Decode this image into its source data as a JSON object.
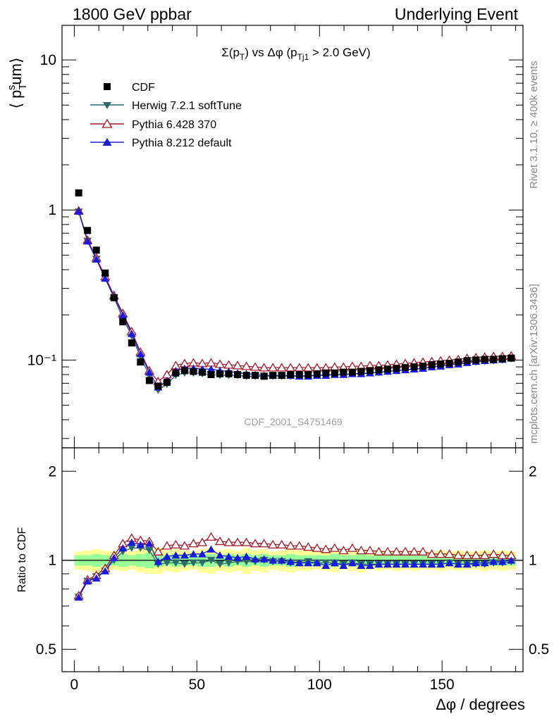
{
  "header": {
    "left": "1800 GeV ppbar",
    "right": "Underlying Event"
  },
  "side_labels": {
    "rivet": "Rivet 3.1.10, ≥ 400k events",
    "mcplots": "mcplots.cern.ch [arXiv:1306.3436]"
  },
  "chart_data": [
    {
      "type": "scatter",
      "title": "Σ(p_T) vs Δφ (p_Tj1 > 2.0 GeV)",
      "title_parts": {
        "pre": "Σ(p",
        "sub1": "T",
        "mid": ") vs Δφ (p",
        "sub2": "Tj1",
        "post": " > 2.0 GeV)"
      },
      "watermark": "CDF_2001_S4751469",
      "ylabel": "⟨ p_T^sum ⟩",
      "ylabel_parts": {
        "pre": "⟨ p",
        "sub": "T",
        "sup": "s",
        "post": "um⟩"
      },
      "yscale": "log",
      "ylim": [
        0.026,
        17
      ],
      "xlim": [
        -5,
        183
      ],
      "ytick_labels": [
        "10",
        "1",
        "10⁻¹"
      ],
      "ytick_values": [
        10,
        1,
        0.1
      ],
      "legend_position": "top-left",
      "x": [
        1.8,
        5.4,
        9,
        12.6,
        16.2,
        19.8,
        23.4,
        27,
        30.6,
        34.2,
        37.8,
        41.4,
        45,
        48.6,
        52.2,
        55.8,
        59.4,
        63,
        66.6,
        70.2,
        73.8,
        77.4,
        81,
        84.6,
        88.2,
        91.8,
        95.4,
        99,
        102.6,
        106.2,
        109.8,
        113.4,
        117,
        120.6,
        124.2,
        127.8,
        131.4,
        135,
        138.6,
        142.2,
        145.8,
        149.4,
        153,
        156.6,
        160.2,
        163.8,
        167.4,
        171,
        174.6,
        178.2
      ],
      "series": [
        {
          "name": "CDF",
          "color": "#000000",
          "marker": "square",
          "values": [
            1.3,
            0.73,
            0.54,
            0.38,
            0.26,
            0.18,
            0.13,
            0.097,
            0.073,
            0.067,
            0.071,
            0.082,
            0.085,
            0.084,
            0.083,
            0.08,
            0.081,
            0.081,
            0.08,
            0.079,
            0.079,
            0.078,
            0.079,
            0.079,
            0.08,
            0.08,
            0.08,
            0.081,
            0.082,
            0.082,
            0.083,
            0.083,
            0.084,
            0.085,
            0.086,
            0.087,
            0.088,
            0.089,
            0.09,
            0.091,
            0.093,
            0.094,
            0.095,
            0.097,
            0.099,
            0.1,
            0.101,
            0.101,
            0.102,
            0.103
          ]
        },
        {
          "name": "Herwig 7.2.1 softTune",
          "color": "#2e6b6b",
          "marker": "triangle-down",
          "values": [
            0.97,
            0.62,
            0.47,
            0.35,
            0.26,
            0.19,
            0.145,
            0.105,
            0.079,
            0.063,
            0.069,
            0.079,
            0.082,
            0.082,
            0.081,
            0.08,
            0.079,
            0.079,
            0.079,
            0.078,
            0.078,
            0.078,
            0.078,
            0.078,
            0.078,
            0.078,
            0.079,
            0.079,
            0.08,
            0.08,
            0.08,
            0.081,
            0.081,
            0.082,
            0.083,
            0.084,
            0.085,
            0.086,
            0.087,
            0.088,
            0.09,
            0.091,
            0.093,
            0.094,
            0.096,
            0.097,
            0.098,
            0.099,
            0.1,
            0.102
          ]
        },
        {
          "name": "Pythia 6.428 370",
          "color": "#a3182a",
          "marker": "triangle-up-open",
          "values": [
            0.99,
            0.63,
            0.48,
            0.36,
            0.27,
            0.205,
            0.155,
            0.113,
            0.085,
            0.072,
            0.08,
            0.092,
            0.095,
            0.096,
            0.095,
            0.096,
            0.094,
            0.093,
            0.092,
            0.091,
            0.09,
            0.089,
            0.089,
            0.089,
            0.089,
            0.089,
            0.089,
            0.089,
            0.089,
            0.09,
            0.09,
            0.091,
            0.091,
            0.092,
            0.092,
            0.093,
            0.094,
            0.095,
            0.096,
            0.097,
            0.098,
            0.099,
            0.1,
            0.101,
            0.103,
            0.104,
            0.105,
            0.106,
            0.106,
            0.107
          ]
        },
        {
          "name": "Pythia 8.212 default",
          "color": "#1a1adb",
          "marker": "triangle-up",
          "values": [
            0.98,
            0.62,
            0.47,
            0.35,
            0.265,
            0.2,
            0.15,
            0.11,
            0.083,
            0.066,
            0.073,
            0.085,
            0.088,
            0.088,
            0.087,
            0.087,
            0.085,
            0.084,
            0.082,
            0.081,
            0.08,
            0.079,
            0.079,
            0.079,
            0.079,
            0.078,
            0.078,
            0.079,
            0.079,
            0.08,
            0.08,
            0.081,
            0.081,
            0.082,
            0.083,
            0.084,
            0.085,
            0.086,
            0.087,
            0.088,
            0.09,
            0.091,
            0.093,
            0.094,
            0.096,
            0.098,
            0.099,
            0.1,
            0.101,
            0.103
          ]
        }
      ]
    },
    {
      "type": "scatter",
      "ylabel": "Ratio to CDF",
      "xlabel": "Δφ / degrees",
      "xlim": [
        -5,
        183
      ],
      "ylim": [
        0.42,
        2.4
      ],
      "yscale": "log",
      "xtick_labels": [
        "0",
        "50",
        "100",
        "150"
      ],
      "xtick_values": [
        0,
        50,
        100,
        150
      ],
      "ytick_labels": [
        "0.5",
        "1",
        "2"
      ],
      "ytick_values": [
        0.5,
        1,
        2
      ],
      "band_yellow": {
        "color": "#ffff99",
        "lo": [
          0.93,
          0.92,
          0.91,
          0.92,
          0.93,
          0.92,
          0.93,
          0.91,
          0.9,
          0.9,
          0.92,
          0.91,
          0.92,
          0.93,
          0.91,
          0.9,
          0.92,
          0.91,
          0.92,
          0.9,
          0.92,
          0.91,
          0.93,
          0.92,
          0.91,
          0.92,
          0.92,
          0.93,
          0.92,
          0.91,
          0.93,
          0.92,
          0.91,
          0.93,
          0.92,
          0.93,
          0.92,
          0.93,
          0.92,
          0.93,
          0.93,
          0.92,
          0.93,
          0.92,
          0.93,
          0.93,
          0.92,
          0.93,
          0.92,
          0.93
        ],
        "hi": [
          1.07,
          1.08,
          1.09,
          1.08,
          1.07,
          1.08,
          1.07,
          1.09,
          1.1,
          1.1,
          1.08,
          1.09,
          1.08,
          1.07,
          1.09,
          1.1,
          1.08,
          1.09,
          1.08,
          1.1,
          1.08,
          1.09,
          1.07,
          1.08,
          1.09,
          1.08,
          1.08,
          1.07,
          1.08,
          1.09,
          1.07,
          1.08,
          1.09,
          1.07,
          1.08,
          1.07,
          1.08,
          1.07,
          1.08,
          1.07,
          1.07,
          1.08,
          1.07,
          1.08,
          1.07,
          1.07,
          1.08,
          1.07,
          1.08,
          1.07
        ]
      },
      "band_green": {
        "color": "#99ff99",
        "lo": [
          0.96,
          0.96,
          0.95,
          0.96,
          0.96,
          0.95,
          0.96,
          0.95,
          0.94,
          0.95,
          0.96,
          0.95,
          0.96,
          0.96,
          0.95,
          0.95,
          0.96,
          0.95,
          0.96,
          0.95,
          0.96,
          0.95,
          0.96,
          0.96,
          0.95,
          0.96,
          0.96,
          0.96,
          0.96,
          0.95,
          0.96,
          0.96,
          0.95,
          0.96,
          0.96,
          0.96,
          0.96,
          0.96,
          0.96,
          0.96,
          0.96,
          0.96,
          0.96,
          0.96,
          0.96,
          0.96,
          0.96,
          0.96,
          0.96,
          0.96
        ],
        "hi": [
          1.04,
          1.04,
          1.05,
          1.04,
          1.04,
          1.05,
          1.04,
          1.05,
          1.06,
          1.05,
          1.04,
          1.05,
          1.04,
          1.04,
          1.05,
          1.05,
          1.04,
          1.05,
          1.04,
          1.05,
          1.04,
          1.05,
          1.04,
          1.04,
          1.05,
          1.04,
          1.04,
          1.04,
          1.04,
          1.05,
          1.04,
          1.04,
          1.05,
          1.04,
          1.04,
          1.04,
          1.04,
          1.04,
          1.04,
          1.04,
          1.04,
          1.04,
          1.04,
          1.04,
          1.04,
          1.04,
          1.04,
          1.04,
          1.04,
          1.04
        ]
      },
      "series": [
        {
          "name": "Herwig 7.2.1 softTune",
          "color": "#2e6b6b",
          "marker": "triangle-down",
          "values": [
            0.75,
            0.85,
            0.88,
            0.92,
            1.0,
            1.07,
            1.1,
            1.1,
            1.08,
            0.97,
            0.98,
            0.98,
            0.97,
            0.98,
            0.98,
            1.0,
            0.97,
            0.98,
            0.99,
            0.99,
            0.99,
            1.0,
            0.99,
            0.99,
            0.98,
            0.98,
            0.99,
            0.98,
            0.98,
            0.98,
            0.97,
            0.98,
            0.97,
            0.97,
            0.97,
            0.97,
            0.97,
            0.97,
            0.97,
            0.97,
            0.97,
            0.97,
            0.98,
            0.97,
            0.97,
            0.97,
            0.97,
            0.98,
            0.98,
            0.99
          ]
        },
        {
          "name": "Pythia 6.428 370",
          "color": "#a3182a",
          "marker": "triangle-up-open",
          "values": [
            0.76,
            0.86,
            0.89,
            0.94,
            1.04,
            1.14,
            1.19,
            1.17,
            1.16,
            1.07,
            1.12,
            1.13,
            1.12,
            1.14,
            1.15,
            1.2,
            1.16,
            1.15,
            1.15,
            1.15,
            1.14,
            1.14,
            1.13,
            1.13,
            1.12,
            1.12,
            1.11,
            1.1,
            1.09,
            1.1,
            1.08,
            1.1,
            1.08,
            1.08,
            1.07,
            1.07,
            1.07,
            1.07,
            1.07,
            1.07,
            1.05,
            1.05,
            1.05,
            1.04,
            1.04,
            1.04,
            1.04,
            1.05,
            1.04,
            1.04
          ]
        },
        {
          "name": "Pythia 8.212 default",
          "color": "#1a1adb",
          "marker": "triangle-up",
          "values": [
            0.75,
            0.85,
            0.87,
            0.92,
            1.02,
            1.1,
            1.15,
            1.13,
            1.14,
            0.99,
            1.03,
            1.04,
            1.04,
            1.05,
            1.05,
            1.09,
            1.04,
            1.03,
            1.02,
            1.03,
            1.01,
            1.01,
            1.0,
            1.0,
            0.99,
            0.98,
            0.98,
            0.98,
            0.96,
            0.98,
            0.96,
            0.98,
            0.96,
            0.96,
            0.97,
            0.97,
            0.97,
            0.97,
            0.97,
            0.97,
            0.97,
            0.97,
            0.98,
            0.97,
            0.97,
            0.98,
            0.98,
            0.99,
            0.99,
            1.0
          ]
        }
      ]
    }
  ]
}
